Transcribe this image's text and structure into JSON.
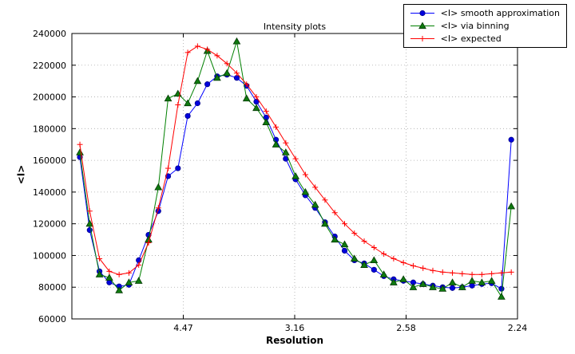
{
  "chart_data": {
    "type": "line",
    "title": "Intensity plots",
    "xlabel": "Resolution",
    "ylabel": "<I>",
    "x_axis_scale": "1/d^2 (tick labels show resolution d in angstrom)",
    "xlim": [
      0.0,
      0.2
    ],
    "ylim": [
      60000,
      240000
    ],
    "grid": true,
    "legend_position": "top-right",
    "xticks": [
      {
        "pos": 0.05,
        "label": "4.47"
      },
      {
        "pos": 0.1,
        "label": "3.16"
      },
      {
        "pos": 0.15,
        "label": "2.58"
      },
      {
        "pos": 0.2,
        "label": "2.24"
      }
    ],
    "yticks": [
      {
        "pos": 60000,
        "label": "60000"
      },
      {
        "pos": 80000,
        "label": "80000"
      },
      {
        "pos": 100000,
        "label": "100000"
      },
      {
        "pos": 120000,
        "label": "120000"
      },
      {
        "pos": 140000,
        "label": "140000"
      },
      {
        "pos": 160000,
        "label": "160000"
      },
      {
        "pos": 180000,
        "label": "180000"
      },
      {
        "pos": 200000,
        "label": "200000"
      },
      {
        "pos": 220000,
        "label": "220000"
      },
      {
        "pos": 240000,
        "label": "240000"
      }
    ],
    "x": [
      0.0036,
      0.008,
      0.0124,
      0.0168,
      0.0212,
      0.0256,
      0.03,
      0.0344,
      0.0388,
      0.0432,
      0.0476,
      0.052,
      0.0564,
      0.0608,
      0.0652,
      0.0696,
      0.074,
      0.0784,
      0.0828,
      0.0872,
      0.0916,
      0.096,
      0.1004,
      0.1048,
      0.1092,
      0.1136,
      0.118,
      0.1224,
      0.1268,
      0.1312,
      0.1356,
      0.14,
      0.1444,
      0.1488,
      0.1532,
      0.1576,
      0.162,
      0.1664,
      0.1708,
      0.1752,
      0.1796,
      0.184,
      0.1884,
      0.1928,
      0.1972
    ],
    "series": [
      {
        "name": "<I> smooth approximation",
        "color": "#0000ff",
        "marker": "circle",
        "marker_face": "#0000dd",
        "marker_edge": "#00008b",
        "values": [
          162000,
          116000,
          90000,
          83000,
          80500,
          81500,
          97000,
          113000,
          128000,
          150000,
          155000,
          188000,
          196000,
          208000,
          213000,
          214000,
          212000,
          207000,
          197000,
          187000,
          173000,
          161000,
          148000,
          138000,
          130000,
          121000,
          112000,
          103000,
          97000,
          95000,
          91000,
          87000,
          85000,
          84000,
          83000,
          82000,
          81000,
          80000,
          79500,
          80000,
          81000,
          82000,
          82500,
          79000,
          173000
        ]
      },
      {
        "name": "<I> via binning",
        "color": "#008000",
        "marker": "triangle",
        "marker_face": "#0f7a0f",
        "marker_edge": "#053805",
        "values": [
          165000,
          120000,
          88000,
          86000,
          78000,
          83000,
          84000,
          110000,
          143000,
          199000,
          202000,
          196000,
          210000,
          229000,
          212000,
          215000,
          235000,
          199000,
          193000,
          184000,
          170000,
          165000,
          150000,
          140000,
          132000,
          120000,
          110000,
          107000,
          98000,
          94000,
          97000,
          88000,
          83000,
          85000,
          80000,
          82000,
          80000,
          79000,
          83000,
          80000,
          84000,
          83000,
          84000,
          74000,
          131000
        ]
      },
      {
        "name": "<I> expected",
        "color": "#ff0000",
        "marker": "plus",
        "marker_face": "#ff0000",
        "marker_edge": "#ff0000",
        "values": [
          170000,
          128000,
          98000,
          90000,
          88000,
          89000,
          94000,
          108000,
          130000,
          155000,
          195000,
          228000,
          232000,
          230000,
          226000,
          221000,
          215000,
          208000,
          200000,
          191000,
          181000,
          171000,
          161000,
          151000,
          143000,
          135000,
          127000,
          120000,
          114000,
          109000,
          105000,
          101000,
          98000,
          95500,
          93500,
          92000,
          90500,
          89500,
          89000,
          88500,
          88000,
          88000,
          88500,
          89000,
          89500
        ]
      }
    ],
    "style": {
      "grid_color": "#aaaaaa",
      "border_color": "#000000",
      "background": "#ffffff"
    }
  }
}
